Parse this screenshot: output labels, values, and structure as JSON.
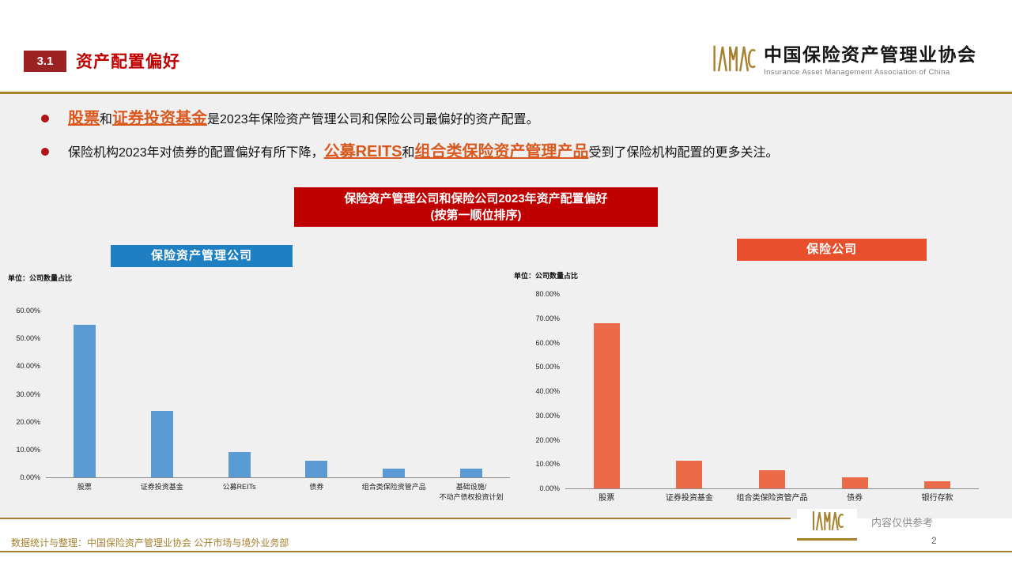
{
  "page": {
    "band_color": "#F0F0F0",
    "accent_gold": "#A6812E",
    "highlight_color": "#D9581E"
  },
  "header": {
    "section_number": "3.1",
    "title": "资产配置偏好",
    "logo": {
      "mark": "IAMAC",
      "cn_name": "中国保险资产管理业协会",
      "en_name": "Insurance Asset Management Association of China"
    }
  },
  "bullets": [
    {
      "segments": [
        {
          "text": "股票",
          "highlight": true
        },
        {
          "text": "和",
          "highlight": false
        },
        {
          "text": "证券投资基金",
          "highlight": true
        },
        {
          "text": "是2023年保险资产管理公司和保险公司最偏好的资产配置。",
          "highlight": false
        }
      ]
    },
    {
      "segments": [
        {
          "text": "保险机构2023年对债券的配置偏好有所下降，",
          "highlight": false
        },
        {
          "text": "公募REITS",
          "highlight": true
        },
        {
          "text": "和",
          "highlight": false
        },
        {
          "text": "组合类保险资产管理产品",
          "highlight": true
        },
        {
          "text": "受到了保险机构配置的更多关注。",
          "highlight": false
        }
      ]
    }
  ],
  "chart_title": {
    "line1": "保险资产管理公司和保险公司2023年资产配置偏好",
    "line2": "(按第一顺位排序)",
    "bg_color": "#C00000"
  },
  "chart_data": [
    {
      "type": "bar",
      "title": "保险资产管理公司",
      "title_bg": "#1E7FC3",
      "unit_label": "单位：公司数量占比",
      "categories": [
        "股票",
        "证券投资基金",
        "公募REITs",
        "债券",
        "组合类保险资管产品",
        "基础设施/\n不动产债权投资计划"
      ],
      "values": [
        55,
        24,
        9,
        6,
        3,
        3
      ],
      "ylim": [
        0,
        60
      ],
      "yticks": [
        "0.00%",
        "10.00%",
        "20.00%",
        "30.00%",
        "40.00%",
        "50.00%",
        "60.00%"
      ],
      "bar_color": "#5B9BD5",
      "grid": false,
      "legend": "none"
    },
    {
      "type": "bar",
      "title": "保险公司",
      "title_bg": "#E8502D",
      "unit_label": "单位：公司数量占比",
      "categories": [
        "股票",
        "证券投资基金",
        "组合类保险资管产品",
        "债券",
        "银行存款"
      ],
      "values": [
        68,
        11.5,
        7.5,
        4.5,
        3
      ],
      "ylim": [
        0,
        80
      ],
      "yticks": [
        "0.00%",
        "10.00%",
        "20.00%",
        "30.00%",
        "40.00%",
        "50.00%",
        "60.00%",
        "70.00%",
        "80.00%"
      ],
      "bar_color": "#EB6A47",
      "grid": false,
      "legend": "none"
    }
  ],
  "footer": {
    "source_note": "数据统计与整理：中国保险资产管理业协会 公开市场与境外业务部",
    "disclaimer": "内容仅供参考",
    "page_number": "2"
  }
}
